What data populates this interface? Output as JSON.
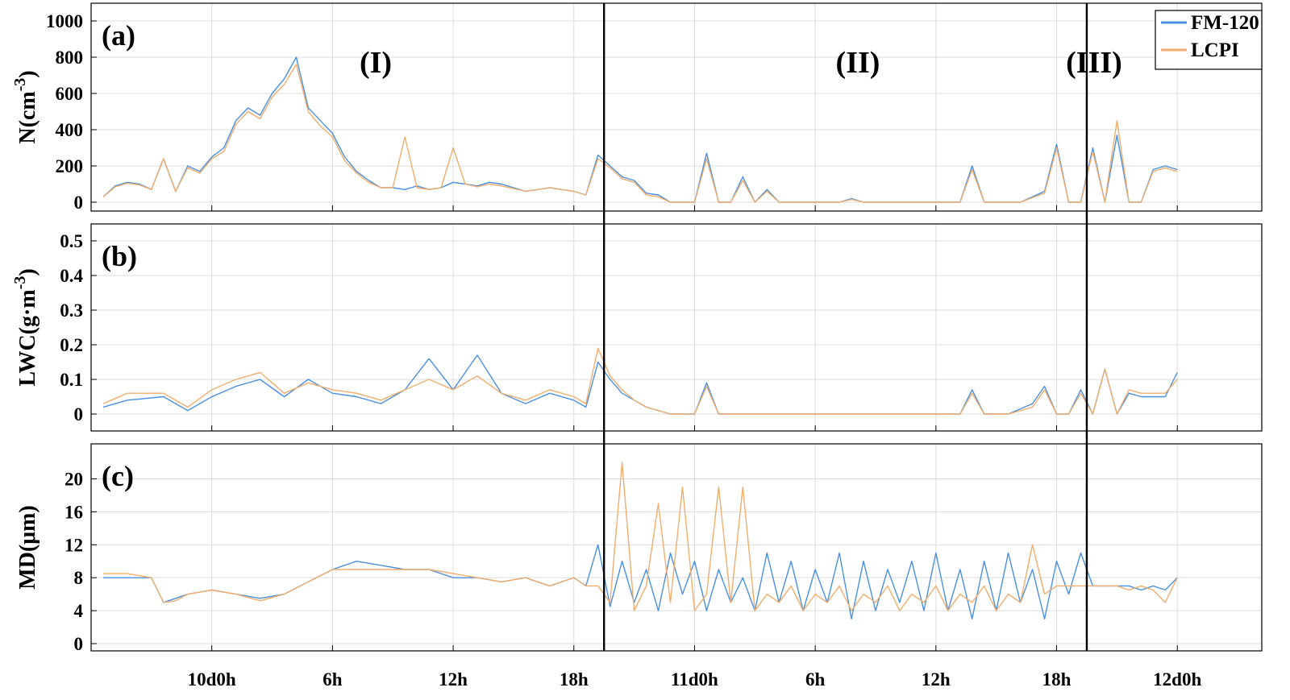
{
  "chart_data": [
    {
      "type": "line",
      "panel_label": "(a)",
      "ylabel": "N(cm",
      "ylabel_sup": "-3",
      "ylabel_close": ")",
      "ylim": [
        0,
        1000
      ],
      "yticks": [
        0,
        200,
        400,
        600,
        800,
        1000
      ],
      "grid": true,
      "legend": {
        "placement": "top-right",
        "entries": [
          "FM-120",
          "LCPI"
        ]
      },
      "series": [
        {
          "name": "FM-120",
          "x": [
            1,
            2,
            3,
            4,
            5,
            6,
            7,
            8,
            9,
            10,
            11,
            12,
            13,
            14,
            15,
            16,
            17,
            18,
            19,
            20,
            21,
            22,
            23,
            24,
            25,
            26,
            27,
            28,
            29,
            30,
            31,
            32,
            33,
            34,
            35,
            36,
            37,
            38,
            39,
            40,
            41,
            42,
            43,
            44,
            45,
            46,
            47,
            48,
            49,
            50,
            51,
            52,
            53,
            54,
            55,
            56,
            57,
            58,
            59,
            60,
            61,
            62,
            63,
            64,
            65,
            66,
            67,
            68,
            69,
            70,
            71,
            72,
            73,
            74,
            75,
            76,
            77,
            78,
            79,
            80,
            81,
            82,
            83,
            84,
            85,
            86,
            87,
            88,
            89,
            90
          ],
          "y": [
            30,
            90,
            110,
            100,
            70,
            240,
            60,
            200,
            170,
            250,
            300,
            450,
            520,
            480,
            600,
            680,
            800,
            520,
            450,
            380,
            250,
            170,
            120,
            80,
            80,
            70,
            90,
            70,
            80,
            110,
            100,
            90,
            110,
            100,
            80,
            60,
            70,
            80,
            70,
            60,
            40,
            260,
            200,
            140,
            120,
            50,
            40,
            0,
            0,
            0,
            270,
            0,
            0,
            140,
            0,
            70,
            0,
            0,
            0,
            0,
            0,
            0,
            20,
            0,
            0,
            0,
            0,
            0,
            0,
            0,
            0,
            0,
            200,
            0,
            0,
            0,
            0,
            30,
            60,
            320,
            0,
            0,
            300,
            0,
            370,
            0,
            0,
            180,
            200,
            180
          ],
          "color": "#4a90e2"
        },
        {
          "name": "LCPI",
          "x": [
            1,
            2,
            3,
            4,
            5,
            6,
            7,
            8,
            9,
            10,
            11,
            12,
            13,
            14,
            15,
            16,
            17,
            18,
            19,
            20,
            21,
            22,
            23,
            24,
            25,
            26,
            27,
            28,
            29,
            30,
            31,
            32,
            33,
            34,
            35,
            36,
            37,
            38,
            39,
            40,
            41,
            42,
            43,
            44,
            45,
            46,
            47,
            48,
            49,
            50,
            51,
            52,
            53,
            54,
            55,
            56,
            57,
            58,
            59,
            60,
            61,
            62,
            63,
            64,
            65,
            66,
            67,
            68,
            69,
            70,
            71,
            72,
            73,
            74,
            75,
            76,
            77,
            78,
            79,
            80,
            81,
            82,
            83,
            84,
            85,
            86,
            87,
            88,
            89,
            90
          ],
          "y": [
            30,
            85,
            105,
            95,
            70,
            240,
            60,
            190,
            160,
            240,
            280,
            430,
            500,
            460,
            580,
            650,
            760,
            500,
            420,
            360,
            230,
            160,
            110,
            80,
            80,
            360,
            80,
            70,
            80,
            300,
            100,
            85,
            100,
            90,
            75,
            60,
            70,
            80,
            70,
            60,
            40,
            240,
            190,
            130,
            110,
            40,
            30,
            0,
            0,
            0,
            240,
            0,
            0,
            120,
            0,
            60,
            0,
            0,
            0,
            0,
            0,
            0,
            15,
            0,
            0,
            0,
            0,
            0,
            0,
            0,
            0,
            0,
            180,
            0,
            0,
            0,
            0,
            25,
            50,
            300,
            0,
            0,
            280,
            0,
            450,
            0,
            0,
            170,
            190,
            170
          ],
          "color": "#f0ad6c"
        }
      ]
    },
    {
      "type": "line",
      "panel_label": "(b)",
      "ylabel": "LWC(g·m",
      "ylabel_sup": "-3",
      "ylabel_close": ")",
      "ylim": [
        0,
        0.5
      ],
      "yticks": [
        0,
        0.1,
        0.2,
        0.3,
        0.4,
        0.5
      ],
      "grid": true,
      "series": [
        {
          "name": "FM-120",
          "x": [
            1,
            3,
            6,
            8,
            10,
            12,
            14,
            16,
            18,
            20,
            22,
            24,
            26,
            28,
            30,
            32,
            34,
            36,
            38,
            40,
            41,
            42,
            43,
            44,
            45,
            46,
            48,
            50,
            51,
            52,
            54,
            56,
            58,
            60,
            62,
            64,
            66,
            68,
            70,
            72,
            73,
            74,
            76,
            78,
            79,
            80,
            81,
            82,
            83,
            84,
            85,
            86,
            87,
            88,
            89,
            90
          ],
          "y": [
            0.02,
            0.04,
            0.05,
            0.01,
            0.05,
            0.08,
            0.1,
            0.05,
            0.1,
            0.06,
            0.05,
            0.03,
            0.07,
            0.16,
            0.07,
            0.17,
            0.06,
            0.03,
            0.06,
            0.04,
            0.02,
            0.15,
            0.1,
            0.06,
            0.04,
            0.02,
            0,
            0,
            0.09,
            0,
            0,
            0,
            0,
            0,
            0,
            0,
            0,
            0,
            0,
            0,
            0.07,
            0,
            0,
            0.03,
            0.08,
            0,
            0,
            0.07,
            0,
            0.13,
            0,
            0.06,
            0.05,
            0.05,
            0.05,
            0.12
          ],
          "color": "#4a90e2"
        },
        {
          "name": "LCPI",
          "x": [
            1,
            3,
            6,
            8,
            10,
            12,
            14,
            16,
            18,
            20,
            22,
            24,
            26,
            28,
            30,
            32,
            34,
            36,
            38,
            40,
            41,
            42,
            43,
            44,
            45,
            46,
            48,
            50,
            51,
            52,
            54,
            56,
            58,
            60,
            62,
            64,
            66,
            68,
            70,
            72,
            73,
            74,
            76,
            78,
            79,
            80,
            81,
            82,
            83,
            84,
            85,
            86,
            87,
            88,
            89,
            90
          ],
          "y": [
            0.03,
            0.06,
            0.06,
            0.02,
            0.07,
            0.1,
            0.12,
            0.06,
            0.09,
            0.07,
            0.06,
            0.04,
            0.07,
            0.1,
            0.07,
            0.11,
            0.06,
            0.04,
            0.07,
            0.05,
            0.03,
            0.19,
            0.11,
            0.07,
            0.04,
            0.02,
            0,
            0,
            0.08,
            0,
            0,
            0,
            0,
            0,
            0,
            0,
            0,
            0,
            0,
            0,
            0.06,
            0,
            0,
            0.02,
            0.07,
            0,
            0,
            0.06,
            0,
            0.13,
            0,
            0.07,
            0.06,
            0.06,
            0.06,
            0.1
          ],
          "color": "#f0ad6c"
        }
      ]
    },
    {
      "type": "line",
      "panel_label": "(c)",
      "ylabel": "MD(μm)",
      "ylim": [
        0,
        22
      ],
      "yticks": [
        0,
        4,
        8,
        12,
        16,
        20
      ],
      "grid": true,
      "xlabel": "",
      "xticks": [
        "10d0h",
        "6h",
        "12h",
        "18h",
        "11d0h",
        "6h",
        "12h",
        "18h",
        "12d0h"
      ],
      "series": [
        {
          "name": "FM-120",
          "x": [
            1,
            3,
            5,
            6,
            7,
            8,
            10,
            12,
            14,
            16,
            18,
            20,
            22,
            24,
            26,
            28,
            30,
            32,
            34,
            36,
            38,
            40,
            41,
            42,
            43,
            44,
            45,
            46,
            47,
            48,
            49,
            50,
            51,
            52,
            53,
            54,
            55,
            56,
            57,
            58,
            59,
            60,
            61,
            62,
            63,
            64,
            65,
            66,
            67,
            68,
            69,
            70,
            71,
            72,
            73,
            74,
            75,
            76,
            77,
            78,
            79,
            80,
            81,
            82,
            83,
            84,
            85,
            86,
            87,
            88,
            89,
            90
          ],
          "y": [
            8,
            8,
            8,
            5,
            5.5,
            6,
            6.5,
            6,
            5.5,
            6,
            7.5,
            9,
            10,
            9.5,
            9,
            9,
            8,
            8,
            7.5,
            8,
            7,
            8,
            7,
            12,
            4.5,
            10,
            5,
            9,
            4,
            11,
            6,
            10,
            4,
            9,
            5,
            8,
            4,
            11,
            5,
            10,
            4,
            9,
            5,
            11,
            3,
            10,
            4,
            9,
            5,
            10,
            4,
            11,
            4,
            9,
            3,
            10,
            4,
            11,
            5,
            9,
            3,
            10,
            6,
            11,
            7,
            7,
            7,
            7,
            6.5,
            7,
            6.5,
            8
          ],
          "color": "#4a90e2"
        },
        {
          "name": "LCPI",
          "x": [
            1,
            3,
            5,
            6,
            7,
            8,
            10,
            12,
            14,
            16,
            18,
            20,
            22,
            24,
            26,
            28,
            30,
            32,
            34,
            36,
            38,
            40,
            41,
            42,
            43,
            44,
            45,
            46,
            47,
            48,
            49,
            50,
            51,
            52,
            53,
            54,
            55,
            56,
            57,
            58,
            59,
            60,
            61,
            62,
            63,
            64,
            65,
            66,
            67,
            68,
            69,
            70,
            71,
            72,
            73,
            74,
            75,
            76,
            77,
            78,
            79,
            80,
            81,
            82,
            83,
            84,
            85,
            86,
            87,
            88,
            89,
            90
          ],
          "y": [
            8.5,
            8.5,
            8,
            5,
            5.2,
            6,
            6.5,
            6,
            5.2,
            6,
            7.5,
            9,
            9,
            9,
            9,
            9,
            8.5,
            8,
            7.5,
            8,
            7,
            8,
            7,
            7,
            5,
            22,
            4,
            7,
            17,
            5,
            19,
            4,
            6,
            19,
            5,
            19,
            4,
            6,
            5,
            7,
            4,
            6,
            5,
            7,
            4,
            6,
            5,
            7,
            4,
            6,
            5,
            7,
            4,
            6,
            5,
            7,
            4,
            6,
            5,
            12,
            6,
            7,
            7,
            7,
            7,
            7,
            7,
            6.5,
            7,
            6.5,
            5,
            8
          ],
          "color": "#f0ad6c"
        }
      ]
    }
  ],
  "region_labels": [
    "(I)",
    "(II)",
    "(III)"
  ],
  "dividers_x": [
    42.5,
    82.5
  ],
  "x_tick_positions": [
    10,
    20,
    30,
    40,
    50,
    60,
    70,
    80,
    90
  ],
  "xlim": [
    0,
    97
  ]
}
